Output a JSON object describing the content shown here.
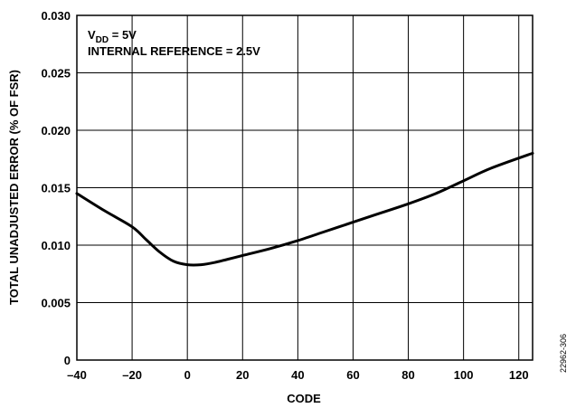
{
  "chart_data": {
    "type": "line",
    "xlabel": "CODE",
    "ylabel": "TOTAL UNADJUSTED ERROR (% OF FSR)",
    "xlim": [
      -40,
      125
    ],
    "ylim": [
      0,
      0.03
    ],
    "x_ticks": [
      "–40",
      "–20",
      "0",
      "20",
      "40",
      "60",
      "80",
      "100",
      "120"
    ],
    "x_tick_values": [
      -40,
      -20,
      0,
      20,
      40,
      60,
      80,
      100,
      120
    ],
    "y_ticks": [
      "0",
      "0.005",
      "0.010",
      "0.015",
      "0.020",
      "0.025",
      "0.030"
    ],
    "y_tick_values": [
      0,
      0.005,
      0.01,
      0.015,
      0.02,
      0.025,
      0.03
    ],
    "grid": true,
    "annotations": {
      "vdd_prefix": "V",
      "vdd_subscript": "DD",
      "vdd_suffix": " = 5V",
      "reference": "INTERNAL REFERENCE = 2.5V"
    },
    "series": [
      {
        "x": [
          -40,
          -30,
          -20,
          -15,
          -10,
          -5,
          0,
          5,
          10,
          20,
          30,
          40,
          50,
          60,
          70,
          80,
          90,
          100,
          110,
          125
        ],
        "y": [
          0.0145,
          0.013,
          0.0116,
          0.0105,
          0.0094,
          0.0086,
          0.0083,
          0.0083,
          0.0085,
          0.0091,
          0.0097,
          0.0104,
          0.0112,
          0.012,
          0.0128,
          0.0136,
          0.0145,
          0.0156,
          0.0167,
          0.018
        ]
      }
    ]
  },
  "figure_code": "22962-306"
}
